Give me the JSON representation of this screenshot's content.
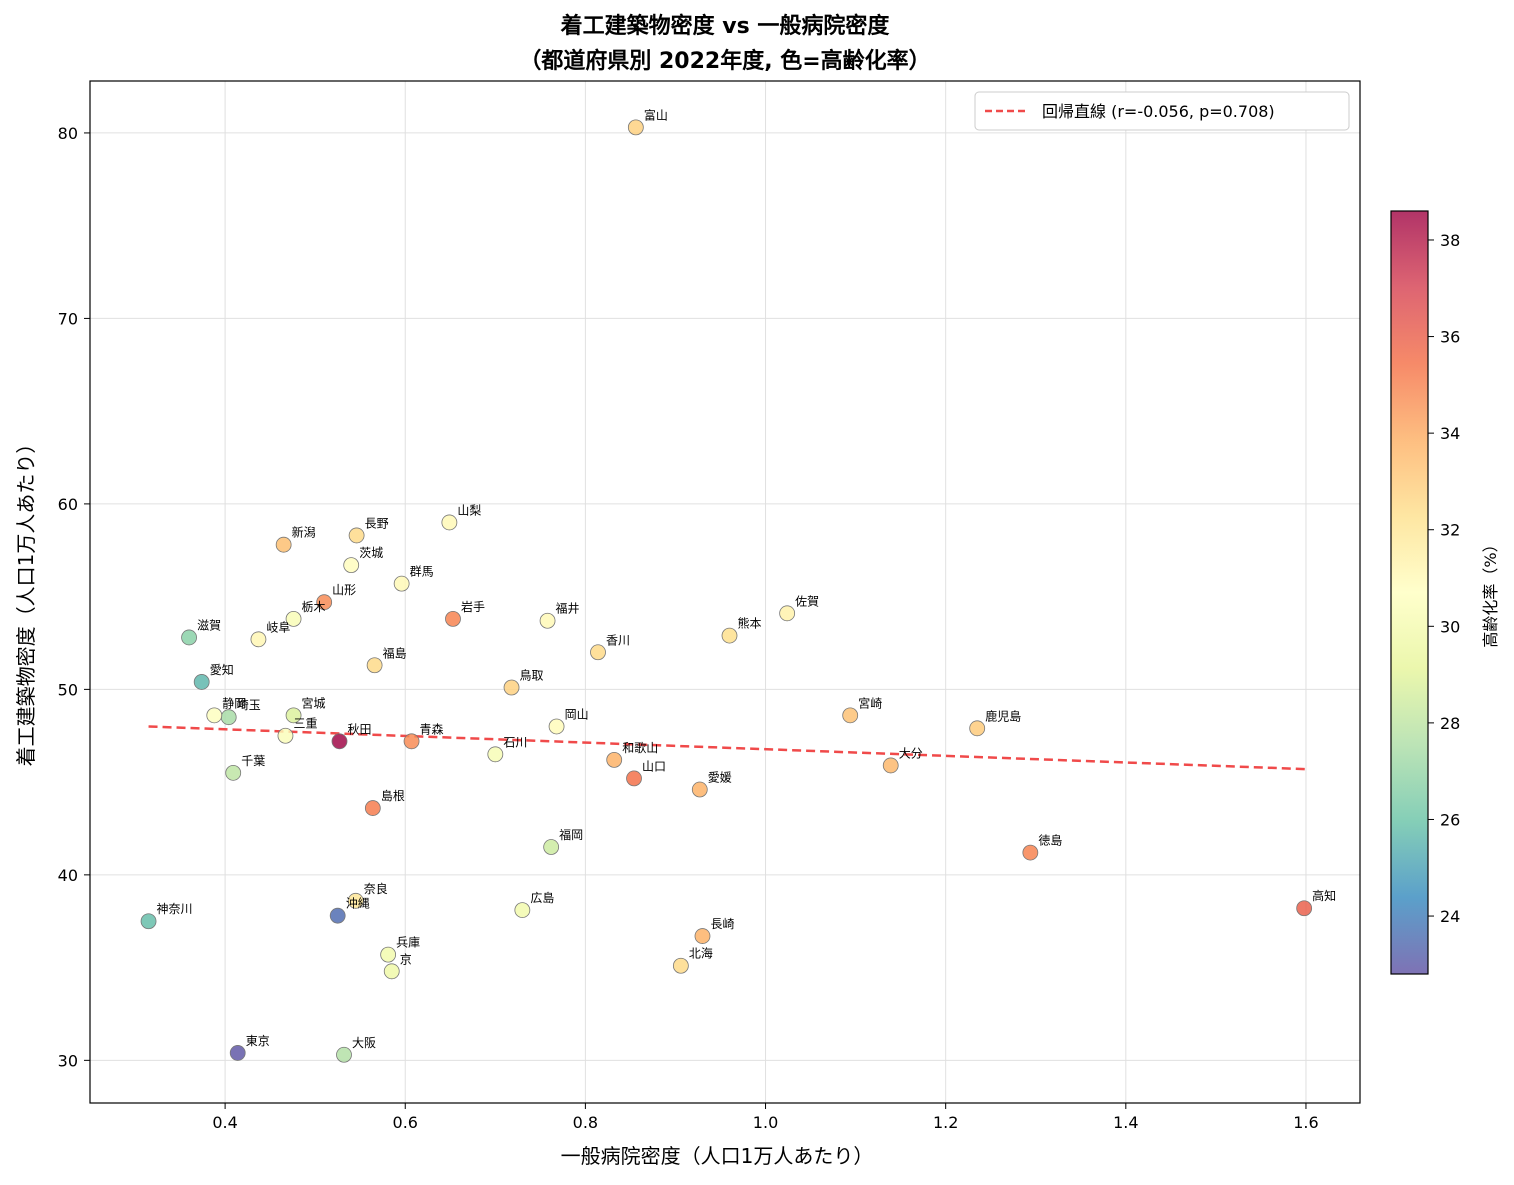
{
  "chart_data": {
    "type": "scatter",
    "title": "着工建築物密度 vs 一般病院密度",
    "subtitle": "（都道府県別 2022年度, 色=高齢化率）",
    "xlabel": "一般病院密度（人口1万人あたり）",
    "ylabel": "着工建築物密度（人口1万人あたり）",
    "xlim": [
      0.25,
      1.66
    ],
    "ylim": [
      27.7,
      82.8
    ],
    "xticks": [
      0.4,
      0.6,
      0.8,
      1.0,
      1.2,
      1.4,
      1.6
    ],
    "xtick_labels": [
      "0.4",
      "0.6",
      "0.8",
      "1.0",
      "1.2",
      "1.4",
      "1.6"
    ],
    "yticks": [
      30,
      40,
      50,
      60,
      70,
      80
    ],
    "ytick_labels": [
      "30",
      "40",
      "50",
      "60",
      "70",
      "80"
    ],
    "grid": true,
    "legend": {
      "position": "top-right",
      "entry": "回帰直線 (r=-0.056, p=0.708)"
    },
    "regression_line": {
      "x": [
        0.315,
        1.6
      ],
      "y": [
        48.0,
        45.7
      ],
      "color": "#f04a4a"
    },
    "colorbar": {
      "label": "高齢化率（%）",
      "min": 22.8,
      "max": 38.6,
      "ticks": [
        24,
        26,
        28,
        30,
        32,
        34,
        36,
        38
      ],
      "tick_labels": [
        "24",
        "26",
        "28",
        "30",
        "32",
        "34",
        "36",
        "38"
      ],
      "colormap": [
        "#5e4fa2",
        "#3288bd",
        "#66c2a5",
        "#abdda4",
        "#e6f598",
        "#ffffbf",
        "#fee08b",
        "#fdae61",
        "#f46d43",
        "#d53e4f",
        "#9e0142"
      ]
    },
    "points": [
      {
        "name": "北海道",
        "label": "北海",
        "x": 0.906,
        "y": 35.1,
        "aging": 32.5
      },
      {
        "name": "青森",
        "label": "青森",
        "x": 0.607,
        "y": 47.2,
        "aging": 34.8
      },
      {
        "name": "岩手",
        "label": "岩手",
        "x": 0.653,
        "y": 53.8,
        "aging": 35.0
      },
      {
        "name": "宮城",
        "label": "宮城",
        "x": 0.476,
        "y": 48.6,
        "aging": 28.8
      },
      {
        "name": "秋田",
        "label": "秋田",
        "x": 0.527,
        "y": 47.2,
        "aging": 38.6
      },
      {
        "name": "山形",
        "label": "山形",
        "x": 0.51,
        "y": 54.7,
        "aging": 34.8
      },
      {
        "name": "福島",
        "label": "福島",
        "x": 0.566,
        "y": 51.3,
        "aging": 32.5
      },
      {
        "name": "茨城",
        "label": "茨城",
        "x": 0.54,
        "y": 56.7,
        "aging": 30.8
      },
      {
        "name": "栃木",
        "label": "栃木",
        "x": 0.476,
        "y": 53.8,
        "aging": 30.3
      },
      {
        "name": "群馬",
        "label": "群馬",
        "x": 0.596,
        "y": 55.7,
        "aging": 31.0
      },
      {
        "name": "埼玉",
        "label": "埼玉",
        "x": 0.404,
        "y": 48.5,
        "aging": 27.4
      },
      {
        "name": "千葉",
        "label": "千葉",
        "x": 0.409,
        "y": 45.5,
        "aging": 28.0
      },
      {
        "name": "東京",
        "label": "東京",
        "x": 0.414,
        "y": 30.4,
        "aging": 22.9
      },
      {
        "name": "神奈川",
        "label": "神奈川",
        "x": 0.315,
        "y": 37.5,
        "aging": 25.8
      },
      {
        "name": "新潟",
        "label": "新潟",
        "x": 0.465,
        "y": 57.8,
        "aging": 33.4
      },
      {
        "name": "富山",
        "label": "富山",
        "x": 0.856,
        "y": 80.3,
        "aging": 32.8
      },
      {
        "name": "石川",
        "label": "石川",
        "x": 0.7,
        "y": 46.5,
        "aging": 30.2
      },
      {
        "name": "福井",
        "label": "福井",
        "x": 0.758,
        "y": 53.7,
        "aging": 31.0
      },
      {
        "name": "山梨",
        "label": "山梨",
        "x": 0.649,
        "y": 59.0,
        "aging": 31.0
      },
      {
        "name": "長野",
        "label": "長野",
        "x": 0.546,
        "y": 58.3,
        "aging": 32.5
      },
      {
        "name": "岐阜",
        "label": "岐阜",
        "x": 0.437,
        "y": 52.7,
        "aging": 31.1
      },
      {
        "name": "静岡",
        "label": "静岡",
        "x": 0.388,
        "y": 48.6,
        "aging": 30.6
      },
      {
        "name": "愛知",
        "label": "愛知",
        "x": 0.374,
        "y": 50.4,
        "aging": 25.6
      },
      {
        "name": "三重",
        "label": "三重",
        "x": 0.467,
        "y": 47.5,
        "aging": 30.4
      },
      {
        "name": "滋賀",
        "label": "滋賀",
        "x": 0.36,
        "y": 52.8,
        "aging": 26.7
      },
      {
        "name": "京都",
        "label": "京",
        "x": 0.585,
        "y": 34.8,
        "aging": 29.7
      },
      {
        "name": "大阪",
        "label": "大阪",
        "x": 0.532,
        "y": 30.3,
        "aging": 27.7
      },
      {
        "name": "兵庫",
        "label": "兵庫",
        "x": 0.581,
        "y": 35.7,
        "aging": 29.9
      },
      {
        "name": "奈良",
        "label": "奈良",
        "x": 0.545,
        "y": 38.6,
        "aging": 32.0
      },
      {
        "name": "和歌山",
        "label": "和歌山",
        "x": 0.832,
        "y": 46.2,
        "aging": 33.8
      },
      {
        "name": "鳥取",
        "label": "鳥取",
        "x": 0.718,
        "y": 50.1,
        "aging": 32.8
      },
      {
        "name": "島根",
        "label": "島根",
        "x": 0.564,
        "y": 43.6,
        "aging": 35.2
      },
      {
        "name": "岡山",
        "label": "岡山",
        "x": 0.768,
        "y": 48.0,
        "aging": 30.9
      },
      {
        "name": "広島",
        "label": "広島",
        "x": 0.73,
        "y": 38.1,
        "aging": 29.9
      },
      {
        "name": "山口",
        "label": "山口",
        "x": 0.854,
        "y": 45.2,
        "aging": 35.5
      },
      {
        "name": "徳島",
        "label": "徳島",
        "x": 1.294,
        "y": 41.2,
        "aging": 35.0
      },
      {
        "name": "香川",
        "label": "香川",
        "x": 0.814,
        "y": 52.0,
        "aging": 32.5
      },
      {
        "name": "愛媛",
        "label": "愛媛",
        "x": 0.927,
        "y": 44.6,
        "aging": 33.8
      },
      {
        "name": "高知",
        "label": "高知",
        "x": 1.598,
        "y": 38.2,
        "aging": 36.0
      },
      {
        "name": "福岡",
        "label": "福岡",
        "x": 0.762,
        "y": 41.5,
        "aging": 28.4
      },
      {
        "name": "佐賀",
        "label": "佐賀",
        "x": 1.024,
        "y": 54.1,
        "aging": 31.4
      },
      {
        "name": "長崎",
        "label": "長崎",
        "x": 0.93,
        "y": 36.7,
        "aging": 33.8
      },
      {
        "name": "熊本",
        "label": "熊本",
        "x": 0.96,
        "y": 52.9,
        "aging": 32.3
      },
      {
        "name": "大分",
        "label": "大分",
        "x": 1.139,
        "y": 45.9,
        "aging": 33.6
      },
      {
        "name": "宮崎",
        "label": "宮崎",
        "x": 1.094,
        "y": 48.6,
        "aging": 33.3
      },
      {
        "name": "鹿児島",
        "label": "鹿児島",
        "x": 1.235,
        "y": 47.9,
        "aging": 33.0
      },
      {
        "name": "沖縄",
        "label": "沖縄",
        "x": 0.525,
        "y": 37.8,
        "aging": 23.5
      }
    ]
  }
}
